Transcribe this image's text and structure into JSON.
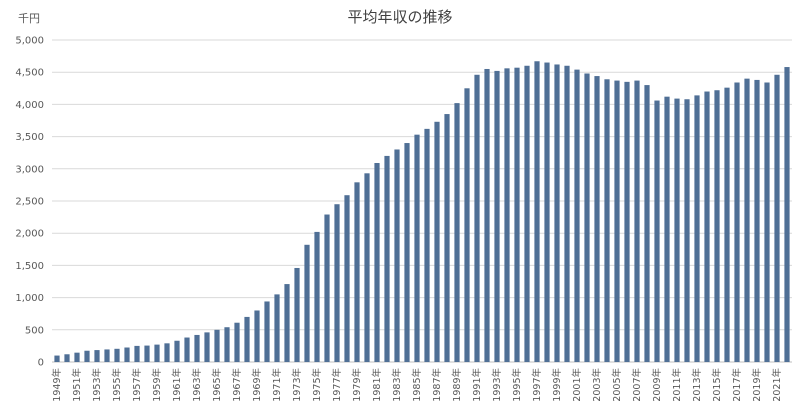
{
  "chart_data": {
    "type": "bar",
    "title": "平均年収の推移",
    "ylabel": "千円",
    "xlabel": "",
    "ylim": [
      0,
      5000
    ],
    "yticks": [
      "0",
      "500",
      "1,000",
      "1,500",
      "2,000",
      "2,500",
      "3,000",
      "3,500",
      "4,000",
      "4,500",
      "5,000"
    ],
    "grid": true,
    "bar_color": "#4f6f95",
    "gridline_color": "#d9d9d9",
    "categories": [
      "1949年",
      "1950年",
      "1951年",
      "1952年",
      "1953年",
      "1954年",
      "1955年",
      "1956年",
      "1957年",
      "1958年",
      "1959年",
      "1960年",
      "1961年",
      "1962年",
      "1963年",
      "1964年",
      "1965年",
      "1966年",
      "1967年",
      "1968年",
      "1969年",
      "1970年",
      "1971年",
      "1972年",
      "1973年",
      "1974年",
      "1975年",
      "1976年",
      "1977年",
      "1978年",
      "1979年",
      "1980年",
      "1981年",
      "1982年",
      "1983年",
      "1984年",
      "1985年",
      "1986年",
      "1987年",
      "1988年",
      "1989年",
      "1990年",
      "1991年",
      "1992年",
      "1993年",
      "1994年",
      "1995年",
      "1996年",
      "1997年",
      "1998年",
      "1999年",
      "2000年",
      "2001年",
      "2002年",
      "2003年",
      "2004年",
      "2005年",
      "2006年",
      "2007年",
      "2008年",
      "2009年",
      "2010年",
      "2011年",
      "2012年",
      "2013年",
      "2014年",
      "2015年",
      "2016年",
      "2017年",
      "2018年",
      "2019年",
      "2020年",
      "2021年",
      "2022年"
    ],
    "visible_x_labels": [
      "1949年",
      "1951年",
      "1953年",
      "1955年",
      "1957年",
      "1959年",
      "1961年",
      "1963年",
      "1965年",
      "1967年",
      "1969年",
      "1971年",
      "1973年",
      "1975年",
      "1977年",
      "1979年",
      "1981年",
      "1983年",
      "1985年",
      "1987年",
      "1989年",
      "1991年",
      "1993年",
      "1995年",
      "1997年",
      "1999年",
      "2001年",
      "2003年",
      "2005年",
      "2007年",
      "2009年",
      "2011年",
      "2013年",
      "2015年",
      "2017年",
      "2019年",
      "2021年"
    ],
    "values": [
      100,
      120,
      145,
      175,
      185,
      195,
      205,
      225,
      250,
      255,
      270,
      290,
      330,
      380,
      420,
      460,
      500,
      540,
      610,
      700,
      800,
      940,
      1050,
      1210,
      1460,
      1820,
      2020,
      2290,
      2450,
      2590,
      2790,
      2930,
      3090,
      3200,
      3300,
      3400,
      3530,
      3620,
      3730,
      3850,
      4020,
      4250,
      4460,
      4550,
      4520,
      4560,
      4570,
      4600,
      4670,
      4650,
      4620,
      4600,
      4540,
      4480,
      4440,
      4390,
      4370,
      4350,
      4370,
      4300,
      4060,
      4120,
      4090,
      4080,
      4140,
      4200,
      4220,
      4260,
      4340,
      4400,
      4380,
      4340,
      4460,
      4580
    ]
  }
}
